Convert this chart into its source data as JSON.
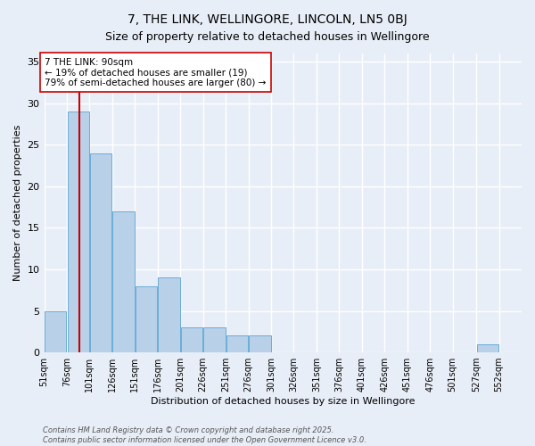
{
  "title": "7, THE LINK, WELLINGORE, LINCOLN, LN5 0BJ",
  "subtitle": "Size of property relative to detached houses in Wellingore",
  "xlabel": "Distribution of detached houses by size in Wellingore",
  "ylabel": "Number of detached properties",
  "bin_starts": [
    51,
    76,
    101,
    126,
    151,
    176,
    201,
    226,
    251,
    276,
    301,
    326,
    351,
    376,
    401,
    426,
    451,
    476,
    501,
    527,
    552
  ],
  "bin_labels": [
    "51sqm",
    "76sqm",
    "101sqm",
    "126sqm",
    "151sqm",
    "176sqm",
    "201sqm",
    "226sqm",
    "251sqm",
    "276sqm",
    "301sqm",
    "326sqm",
    "351sqm",
    "376sqm",
    "401sqm",
    "426sqm",
    "451sqm",
    "476sqm",
    "501sqm",
    "527sqm",
    "552sqm"
  ],
  "counts": [
    5,
    29,
    24,
    17,
    8,
    9,
    3,
    3,
    2,
    2,
    0,
    0,
    0,
    0,
    0,
    0,
    0,
    0,
    0,
    1,
    0
  ],
  "bar_color": "#b8d0e8",
  "bar_edge_color": "#6aaed6",
  "ref_line_x": 90,
  "ref_line_color": "#cc0000",
  "annotation_text": "7 THE LINK: 90sqm\n← 19% of detached houses are smaller (19)\n79% of semi-detached houses are larger (80) →",
  "annotation_box_color": "#ffffff",
  "annotation_box_edge": "#cc0000",
  "ylim": [
    0,
    36
  ],
  "yticks": [
    0,
    5,
    10,
    15,
    20,
    25,
    30,
    35
  ],
  "footer_line1": "Contains HM Land Registry data © Crown copyright and database right 2025.",
  "footer_line2": "Contains public sector information licensed under the Open Government Licence v3.0.",
  "bg_color": "#e8eef7",
  "grid_color": "#ffffff",
  "title_fontsize": 10,
  "subtitle_fontsize": 9,
  "axis_label_fontsize": 8,
  "tick_fontsize": 7,
  "annotation_fontsize": 7.5,
  "footer_fontsize": 6
}
